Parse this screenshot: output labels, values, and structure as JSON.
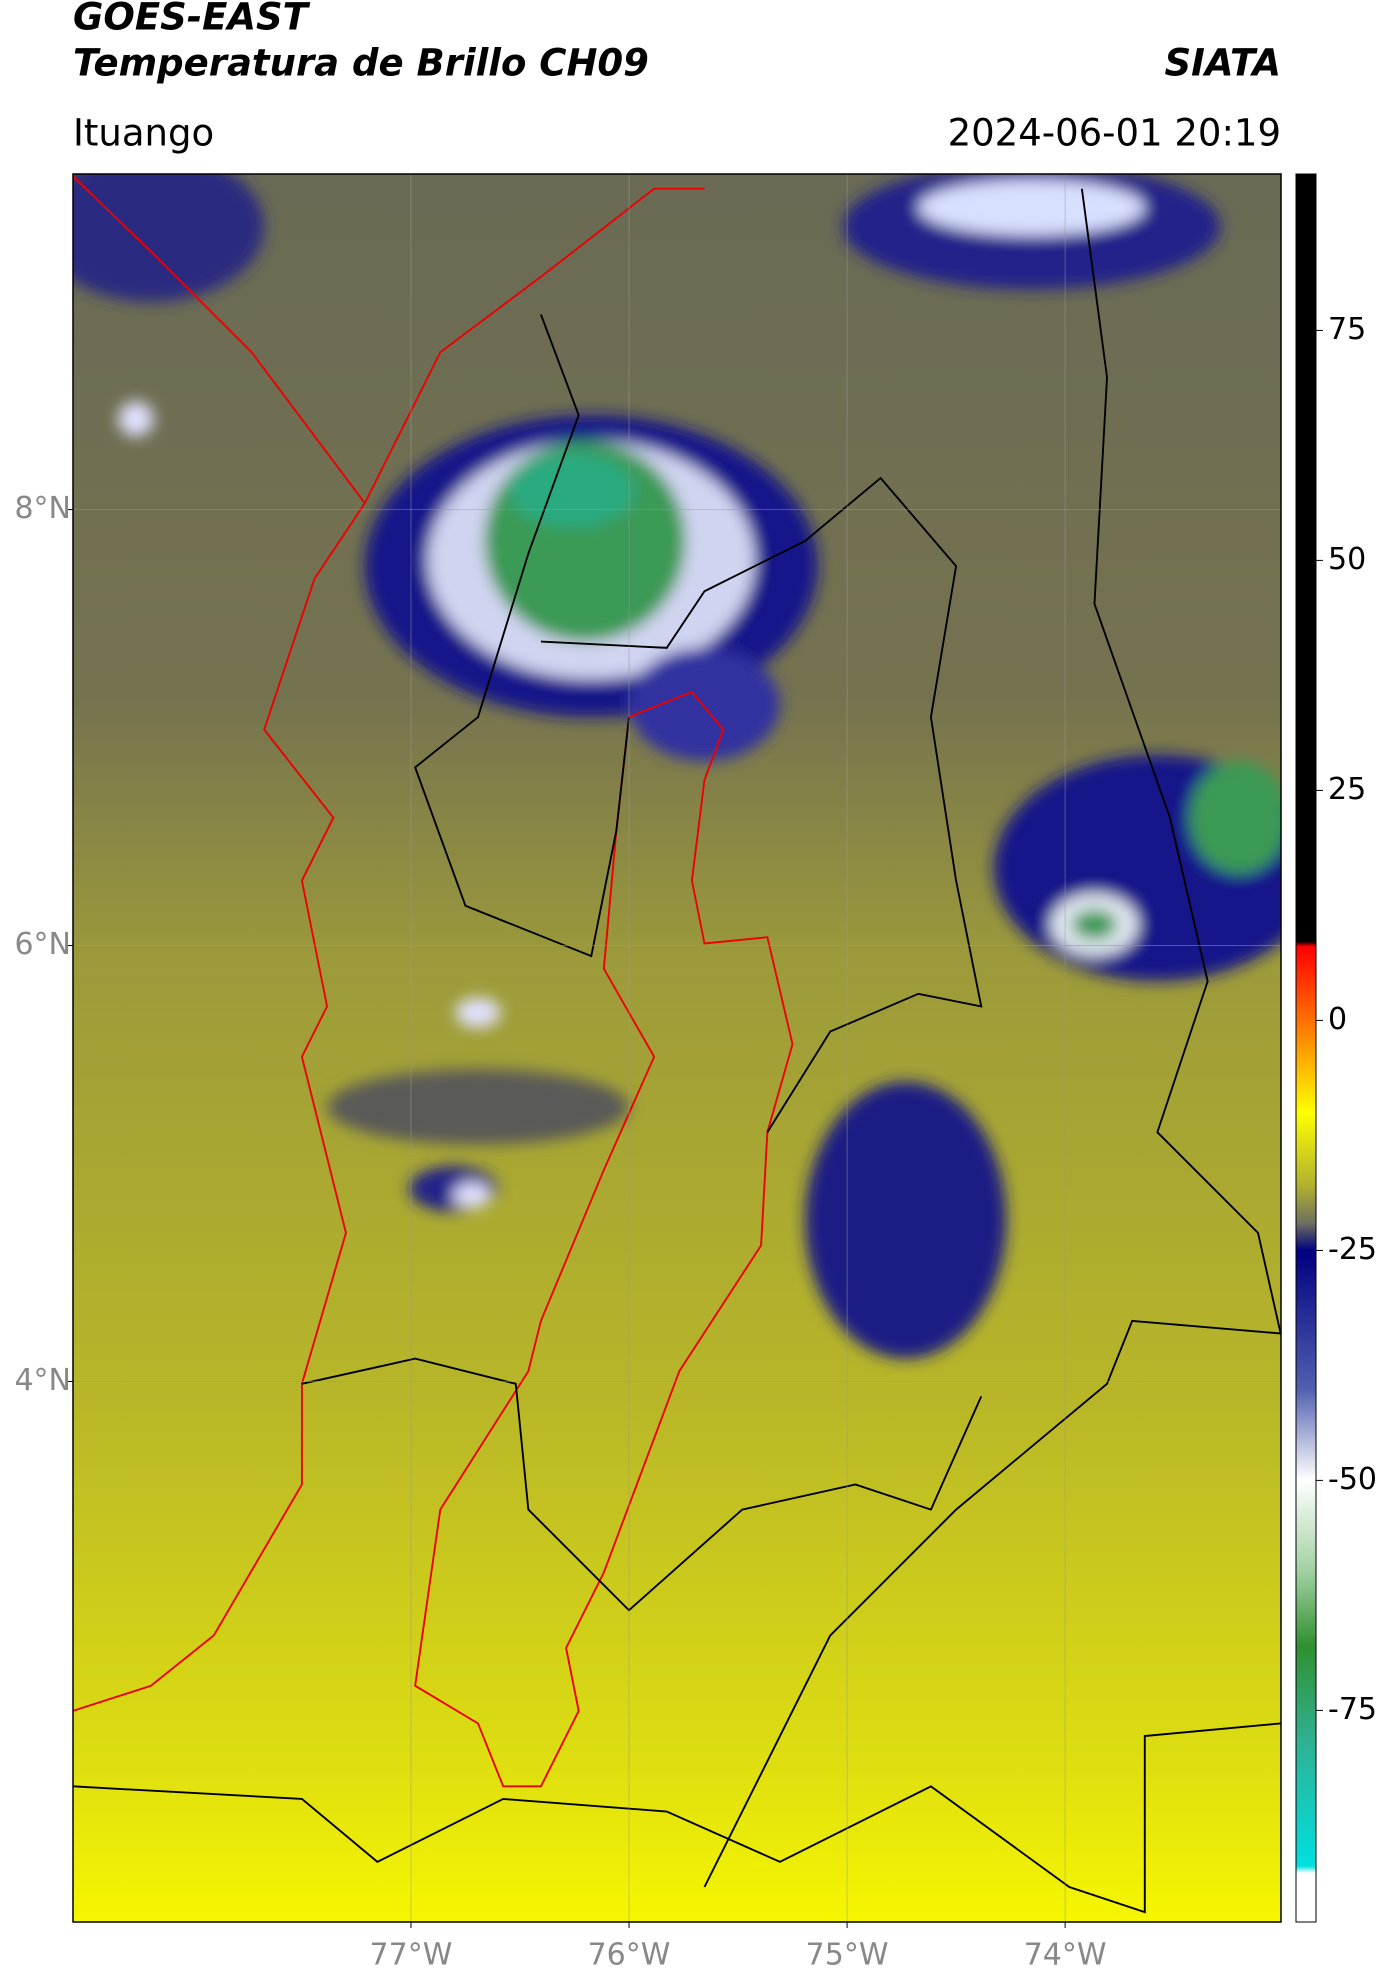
{
  "header": {
    "title": "GOES-EAST",
    "subtitle": "Temperatura de Brillo CH09",
    "source": "SIATA",
    "location": "Ituango",
    "datetime": "2024-06-01 20:19"
  },
  "map": {
    "xlim": [
      -78.55,
      -73.01
    ],
    "ylim": [
      1.52,
      9.54
    ],
    "xticks": [
      {
        "value": -77,
        "label": "77°W"
      },
      {
        "value": -76,
        "label": "76°W"
      },
      {
        "value": -75,
        "label": "75°W"
      },
      {
        "value": -74,
        "label": "74°W"
      }
    ],
    "yticks": [
      {
        "value": 8,
        "label": "8°N"
      },
      {
        "value": 6,
        "label": "6°N"
      },
      {
        "value": 4,
        "label": "4°N"
      }
    ],
    "grid": true
  },
  "colorbar": {
    "lim": [
      -98,
      92
    ],
    "ticks": [
      75,
      50,
      25,
      0,
      -25,
      -50,
      -75
    ]
  }
}
